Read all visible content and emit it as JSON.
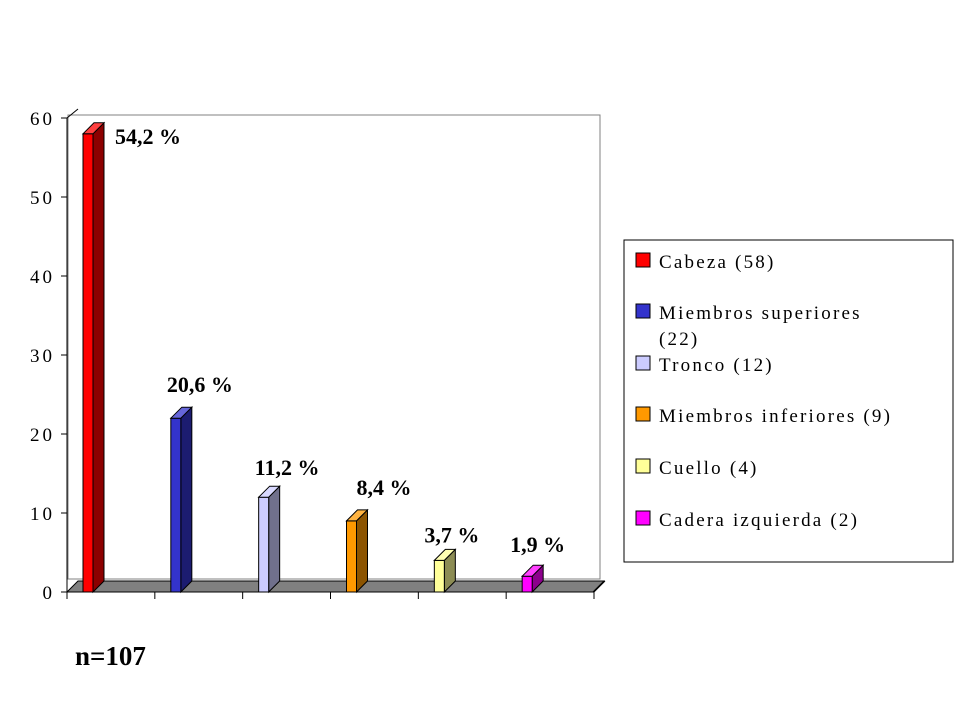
{
  "chart_data": {
    "type": "bar",
    "categories": [
      "Cabeza",
      "Miembros superiores",
      "Tronco",
      "Miembros inferiores",
      "Cuello",
      "Cadera izquierda"
    ],
    "values": [
      58,
      22,
      12,
      9,
      4,
      2
    ],
    "data_labels": [
      "54,2 %",
      "20,6 %",
      "11,2 %",
      "8,4 %",
      "3,7 %",
      "1,9 %"
    ],
    "colors": [
      "#ff0000",
      "#3333cc",
      "#ccccff",
      "#ff9900",
      "#ffff99",
      "#ff00ff"
    ],
    "yticks": [
      "0",
      "10",
      "20",
      "30",
      "40",
      "50",
      "60"
    ],
    "ylim": [
      0,
      60
    ],
    "legend": {
      "position": "right",
      "entries": [
        {
          "lines": [
            "Cabeza (58)"
          ]
        },
        {
          "lines": [
            "Miembros superiores",
            "(22)"
          ]
        },
        {
          "lines": [
            "Tronco (12)"
          ]
        },
        {
          "lines": [
            "Miembros inferiores (9)"
          ]
        },
        {
          "lines": [
            "Cuello (4)"
          ]
        },
        {
          "lines": [
            "Cadera izquierda (2)"
          ]
        }
      ]
    },
    "style": "3d-bar",
    "grid": false
  },
  "note": "n=107"
}
